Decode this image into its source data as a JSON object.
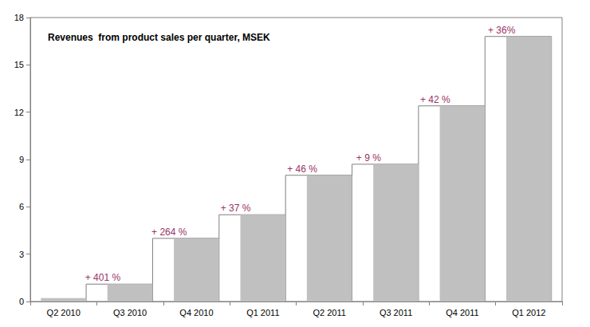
{
  "chart_data": {
    "type": "bar",
    "title": "Revenues  from product sales per quarter, MSEK",
    "categories": [
      "Q2 2010",
      "Q3 2010",
      "Q4 2010",
      "Q1 2011",
      "Q2 2011",
      "Q3 2011",
      "Q4 2011",
      "Q1 2012"
    ],
    "values": [
      0.22,
      1.1,
      4.0,
      5.5,
      8.0,
      8.7,
      12.4,
      16.8
    ],
    "annotations": [
      null,
      "+ 401 %",
      "+ 264 %",
      "+ 37 %",
      "+ 46 %",
      "+ 9 %",
      "+ 42 %",
      "+ 36%"
    ],
    "color": "#c0c0c0",
    "ylim": [
      0,
      18
    ],
    "yticks": [
      0,
      3,
      6,
      9,
      12,
      15,
      18
    ],
    "grid": false
  }
}
